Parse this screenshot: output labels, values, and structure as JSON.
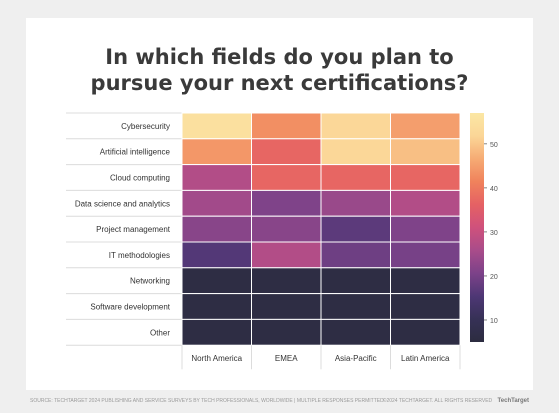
{
  "title_line1": "In which fields do you plan to",
  "title_line2": "pursue your next certifications?",
  "footer_source": "SOURCE: TECHTARGET 2024 PUBLISHING AND SERVICE SURVEYS BY TECH PROFESSIONALS, WORLDWIDE | MULTIPLE RESPONSES PERMITTED",
  "footer_copyright": "©2024 TECHTARGET. ALL RIGHTS RESERVED",
  "footer_brand": "TechTarget",
  "chart_data": {
    "type": "heatmap",
    "title": "In which fields do you plan to pursue your next certifications?",
    "rows": [
      "Cybersecurity",
      "Artificial intelligence",
      "Cloud computing",
      "Data science and analytics",
      "Project management",
      "IT methodologies",
      "Networking",
      "Software development",
      "Other"
    ],
    "columns": [
      "North America",
      "EMEA",
      "Asia-Pacific",
      "Latin America"
    ],
    "values": [
      [
        55,
        43,
        52,
        45
      ],
      [
        44,
        37,
        52,
        49
      ],
      [
        27,
        37,
        37,
        37
      ],
      [
        25,
        21,
        24,
        27
      ],
      [
        22,
        22,
        17,
        21
      ],
      [
        16,
        27,
        19,
        20
      ],
      [
        6,
        6,
        6,
        6
      ],
      [
        6,
        6,
        6,
        6
      ],
      [
        6,
        6,
        6,
        6
      ]
    ],
    "colorbar": {
      "min": 5,
      "max": 57,
      "ticks": [
        10,
        20,
        30,
        40,
        50
      ],
      "colors": [
        "#2c2c40",
        "#363156",
        "#4e3775",
        "#7c4289",
        "#a94c8a",
        "#cf517c",
        "#e56164",
        "#f0825c",
        "#f6ab74",
        "#fbd697",
        "#fbe7a4"
      ]
    },
    "grid_color": "#ffffff"
  }
}
